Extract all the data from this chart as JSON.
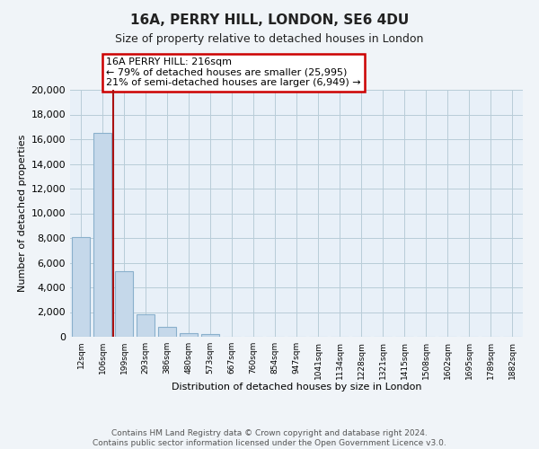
{
  "title": "16A, PERRY HILL, LONDON, SE6 4DU",
  "subtitle": "Size of property relative to detached houses in London",
  "xlabel": "Distribution of detached houses by size in London",
  "ylabel": "Number of detached properties",
  "categories": [
    "12sqm",
    "106sqm",
    "199sqm",
    "293sqm",
    "386sqm",
    "480sqm",
    "573sqm",
    "667sqm",
    "760sqm",
    "854sqm",
    "947sqm",
    "1041sqm",
    "1134sqm",
    "1228sqm",
    "1321sqm",
    "1415sqm",
    "1508sqm",
    "1602sqm",
    "1695sqm",
    "1789sqm",
    "1882sqm"
  ],
  "values": [
    8100,
    16500,
    5300,
    1800,
    800,
    300,
    200,
    0,
    0,
    0,
    0,
    0,
    0,
    0,
    0,
    0,
    0,
    0,
    0,
    0,
    0
  ],
  "bar_color": "#c5d8ea",
  "bar_edge_color": "#8ab0cc",
  "vline_color": "#aa1111",
  "annotation_title": "16A PERRY HILL: 216sqm",
  "annotation_line1": "← 79% of detached houses are smaller (25,995)",
  "annotation_line2": "21% of semi-detached houses are larger (6,949) →",
  "annotation_box_color": "#ffffff",
  "annotation_box_edge": "#cc0000",
  "ylim": [
    0,
    20000
  ],
  "yticks": [
    0,
    2000,
    4000,
    6000,
    8000,
    10000,
    12000,
    14000,
    16000,
    18000,
    20000
  ],
  "footer_line1": "Contains HM Land Registry data © Crown copyright and database right 2024.",
  "footer_line2": "Contains public sector information licensed under the Open Government Licence v3.0.",
  "bg_color": "#f0f4f8",
  "plot_bg_color": "#e8f0f8",
  "grid_color": "#b8ccd8"
}
